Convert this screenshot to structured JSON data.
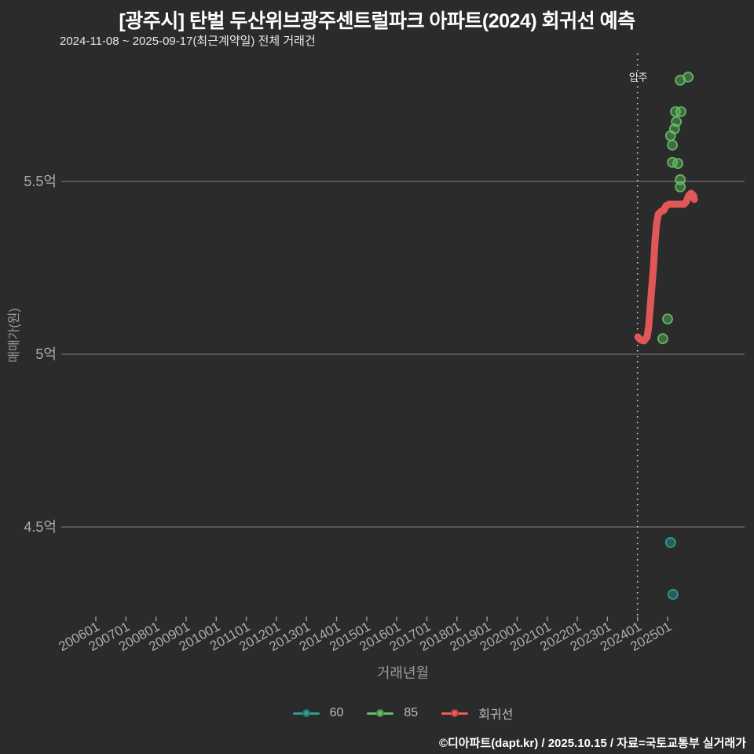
{
  "page": {
    "background": "#2B2B2B"
  },
  "header": {
    "title": "[광주시] 탄벌 두산위브광주센트럴파크 아파트(2024) 회귀선 예측",
    "subtitle": "2024-11-08 ~ 2025-09-17(최근계약일) 전체 거래건"
  },
  "footer": {
    "credit": "©디아파트(dapt.kr) / 2025.10.15 / 자료=국토교통부 실거래가"
  },
  "chart_data": {
    "type": "scatter",
    "title": "[광주시] 탄벌 두산위브광주센트럴파크 아파트(2024) 회귀선 예측",
    "subtitle": "2024-11-08 ~ 2025-09-17(최근계약일) 전체 거래건",
    "xlabel": "거래년월",
    "ylabel": "매매가(원)",
    "x_unit": "year.decimal (YYYYMM ticks)",
    "y_unit": "억원",
    "grid": true,
    "legend_position": "bottom",
    "x_ticks": [
      "200601",
      "200701",
      "200801",
      "200901",
      "201001",
      "201101",
      "201201",
      "201301",
      "201401",
      "201501",
      "201601",
      "201701",
      "201801",
      "201901",
      "202001",
      "202101",
      "202201",
      "202301",
      "202401",
      "202501"
    ],
    "y_ticks": [
      {
        "value": 5.5,
        "label": "5.5억"
      },
      {
        "value": 5.0,
        "label": "5억"
      },
      {
        "value": 4.5,
        "label": "4.5억"
      }
    ],
    "ylim": [
      4.2,
      5.9
    ],
    "annotation": {
      "label": "입주",
      "t": 2024.0
    },
    "series": [
      {
        "name": "60",
        "type": "scatter",
        "color": "#2E9E94",
        "points": [
          [
            2025.1,
            4.455
          ],
          [
            2025.18,
            4.305
          ]
        ]
      },
      {
        "name": "85",
        "type": "scatter",
        "color": "#62BE62",
        "points": [
          [
            2024.84,
            5.045
          ],
          [
            2025.0,
            5.102
          ],
          [
            2025.1,
            5.632
          ],
          [
            2025.16,
            5.605
          ],
          [
            2025.16,
            5.555
          ],
          [
            2025.23,
            5.652
          ],
          [
            2025.26,
            5.702
          ],
          [
            2025.29,
            5.673
          ],
          [
            2025.34,
            5.552
          ],
          [
            2025.42,
            5.793
          ],
          [
            2025.42,
            5.505
          ],
          [
            2025.42,
            5.484
          ],
          [
            2025.44,
            5.702
          ],
          [
            2025.68,
            5.802
          ]
        ]
      },
      {
        "name": "회귀선",
        "type": "line",
        "color": "#F15B5B",
        "points": [
          [
            2024.01,
            5.05
          ],
          [
            2024.11,
            5.041
          ],
          [
            2024.22,
            5.039
          ],
          [
            2024.32,
            5.05
          ],
          [
            2024.37,
            5.08
          ],
          [
            2024.45,
            5.166
          ],
          [
            2024.53,
            5.252
          ],
          [
            2024.58,
            5.325
          ],
          [
            2024.63,
            5.375
          ],
          [
            2024.69,
            5.405
          ],
          [
            2024.79,
            5.414
          ],
          [
            2024.87,
            5.416
          ],
          [
            2024.95,
            5.43
          ],
          [
            2025.05,
            5.434
          ],
          [
            2025.26,
            5.434
          ],
          [
            2025.55,
            5.434
          ],
          [
            2025.63,
            5.443
          ],
          [
            2025.7,
            5.459
          ],
          [
            2025.78,
            5.466
          ],
          [
            2025.86,
            5.459
          ],
          [
            2025.89,
            5.448
          ]
        ]
      }
    ]
  },
  "legend": {
    "items": [
      {
        "label": "60",
        "color": "#2E9E94"
      },
      {
        "label": "85",
        "color": "#62BE62"
      },
      {
        "label": "회귀선",
        "color": "#F15B5B"
      }
    ]
  },
  "style": {
    "grid_color": "#6E6E6E",
    "tick_color": "#9A9A9A",
    "tick_label_color": "#ACACAC",
    "annotation_line_color": "#DCDCDC",
    "annotation_label_color": "#F2F2F2"
  }
}
